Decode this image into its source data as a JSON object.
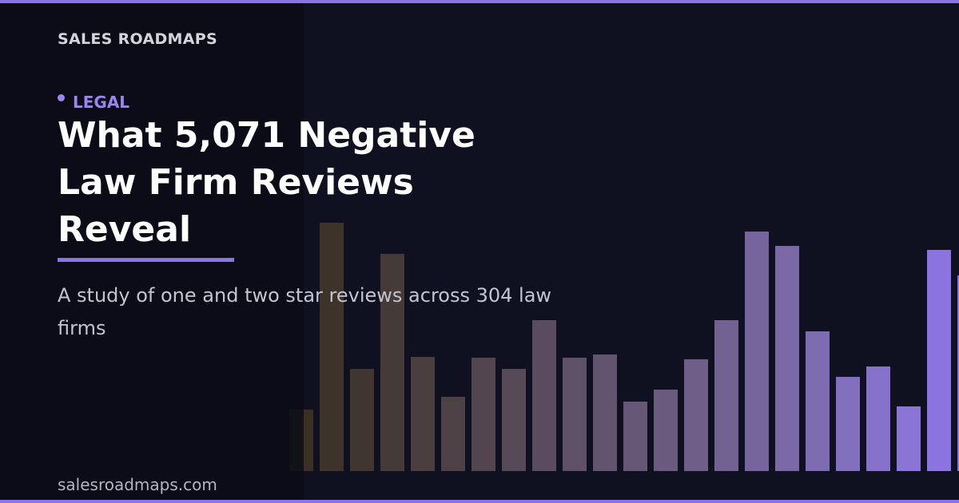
{
  "brand": "SALES ROADMAPS",
  "tag": "LEGAL",
  "title": "What 5,071 Negative Law Firm Reviews Reveal",
  "subtitle": "A study of one and two star reviews across 304 law firms",
  "footer": "salesroadmaps.com"
}
